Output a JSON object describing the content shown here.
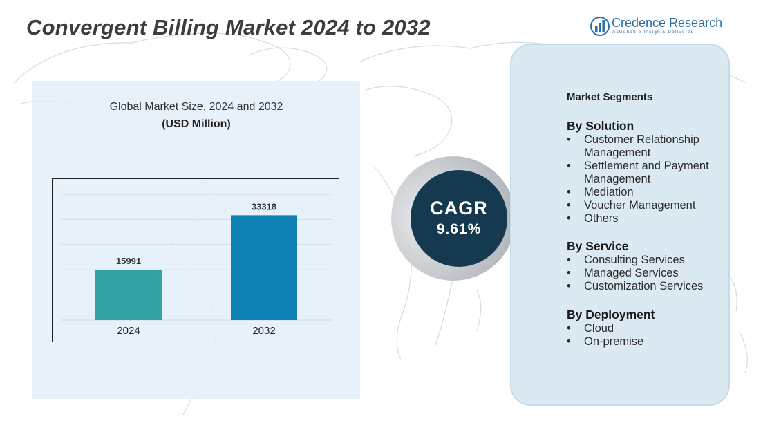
{
  "title": "Convergent Billing  Market  2024 to 2032",
  "logo": {
    "name": "Credence Research",
    "tagline": "Actionable Insights Delivered"
  },
  "chart_panel": {
    "heading": "Global Market Size, 2024 and 2032",
    "unit": "(USD Million)"
  },
  "chart_data": {
    "type": "bar",
    "title": "Global Market Size, 2024 and 2032",
    "subtitle": "(USD Million)",
    "categories": [
      "2024",
      "2032"
    ],
    "values": [
      15991,
      33318
    ],
    "value_labels": [
      "15991",
      "33318"
    ],
    "colors": [
      "#35a3a3",
      "#0e7fb3"
    ],
    "ylim": [
      0,
      40000
    ],
    "grid": true,
    "xlabel": "",
    "ylabel": ""
  },
  "cagr": {
    "label": "CAGR",
    "value": "9.61%"
  },
  "segments": {
    "title": "Market Segments",
    "groups": [
      {
        "title": "By Solution",
        "items": [
          "Customer Relationship Management",
          "Settlement and Payment Management",
          "Mediation",
          "Voucher Management",
          "Others"
        ]
      },
      {
        "title": "By Service",
        "items": [
          "Consulting Services",
          "Managed Services",
          "Customization Services"
        ]
      },
      {
        "title": "By Deployment",
        "items": [
          "Cloud",
          "On-premise"
        ]
      }
    ]
  },
  "colors": {
    "title_text": "#3d3d3d",
    "brand_blue": "#2a6ea8",
    "cagr_circle": "#15394f",
    "segment_panel": "#dbe9f3",
    "chart_panel": "#e3eef8"
  },
  "icons": {
    "bullet": "•",
    "logo": "bar-chart-logo-icon"
  }
}
